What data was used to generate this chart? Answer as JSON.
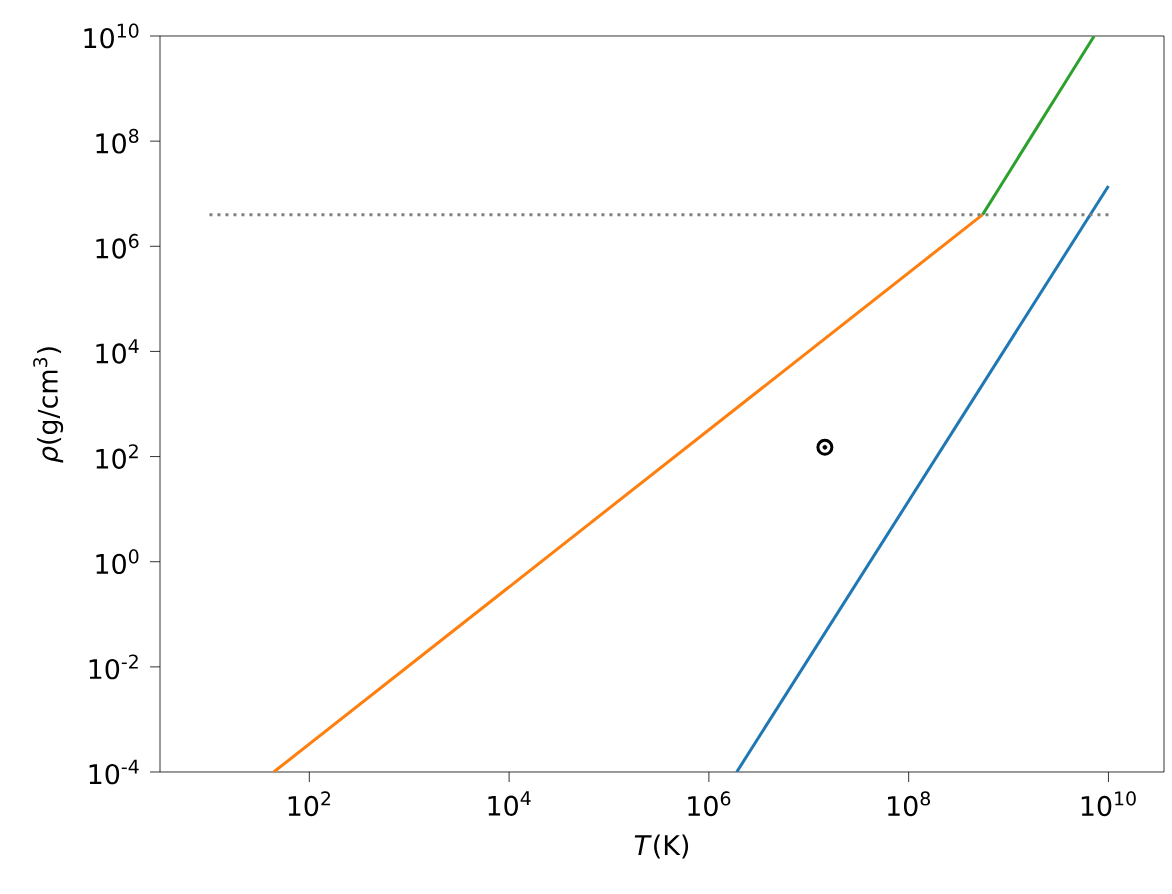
{
  "chart_data": {
    "type": "line",
    "xlabel": "*T*(K)",
    "ylabel": "*ρ*(g/cm$^{3}$)",
    "log": "xy",
    "xlim": [
      3.2,
      36000000000
    ],
    "ylim": [
      0.0001,
      10000000000
    ],
    "xticks": [
      {
        "value": 100,
        "label": "10$^{2}$"
      },
      {
        "value": 10000,
        "label": "10$^{4}$"
      },
      {
        "value": 1000000,
        "label": "10$^{6}$"
      },
      {
        "value": 100000000,
        "label": "10$^{8}$"
      },
      {
        "value": 10000000000,
        "label": "10$^{10}$"
      }
    ],
    "yticks": [
      {
        "value": 0.0001,
        "label": "10$^{-4}$"
      },
      {
        "value": 0.01,
        "label": "10$^{-2}$"
      },
      {
        "value": 1,
        "label": "10$^{0}$"
      },
      {
        "value": 100,
        "label": "10$^{2}$"
      },
      {
        "value": 10000,
        "label": "10$^{4}$"
      },
      {
        "value": 1000000,
        "label": "10$^{6}$"
      },
      {
        "value": 100000000,
        "label": "10$^{8}$"
      },
      {
        "value": 10000000000,
        "label": "10$^{10}$"
      }
    ],
    "series": [
      {
        "color": "#1f77b4",
        "x": [
          1900000,
          10000000000
        ],
        "values": [
          0.0001,
          14000000
        ]
      },
      {
        "color": "#ff7f0e",
        "x": [
          44,
          550000000
        ],
        "values": [
          0.0001,
          4000000
        ]
      },
      {
        "color": "#2ca02c",
        "x": [
          550000000,
          7200000000
        ],
        "values": [
          4000000,
          10000000000
        ]
      },
      {
        "color": "#808080",
        "line_style": "dotted",
        "x": [
          10,
          10000000000
        ],
        "values": [
          4000000,
          4000000
        ]
      },
      {
        "type": "scatter",
        "color": "#000000",
        "marker": "circle",
        "x": [
          14500000
        ],
        "values": [
          150
        ]
      }
    ]
  }
}
